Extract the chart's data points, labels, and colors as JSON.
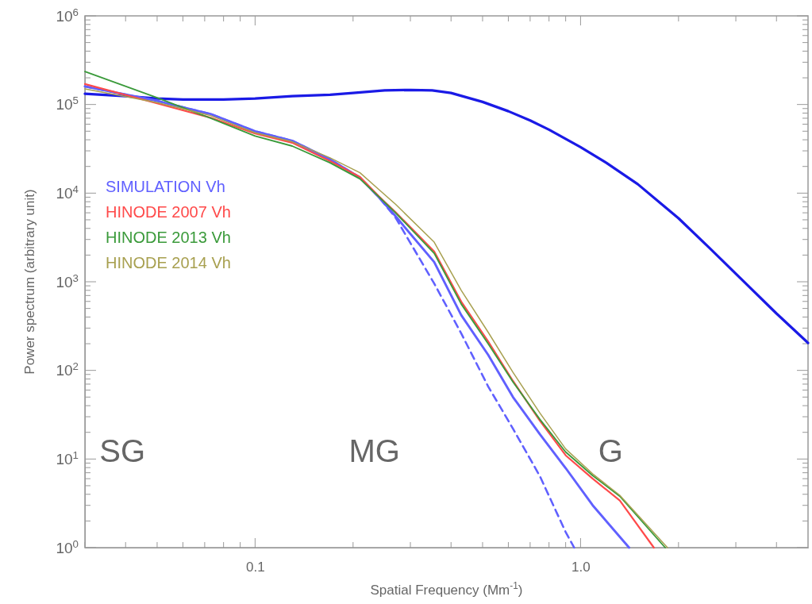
{
  "chart_data": {
    "type": "line",
    "xlabel": "Spatial Frequency (Mm$^{-1}$)",
    "ylabel": "Power spectrum (arbitrary unit)",
    "log": "xy",
    "grid": false,
    "legend": "top left",
    "marker": "none",
    "xlim": [
      0.03,
      5
    ],
    "ylim": [
      1,
      1000000
    ],
    "xticks": [
      {
        "value": 0.03,
        "label": null
      },
      {
        "value": 0.04,
        "label": null
      },
      {
        "value": 0.05,
        "label": null
      },
      {
        "value": 0.06,
        "label": null
      },
      {
        "value": 0.07,
        "label": null
      },
      {
        "value": 0.08,
        "label": null
      },
      {
        "value": 0.09,
        "label": null
      },
      0.1,
      {
        "value": 0.2,
        "label": null
      },
      {
        "value": 0.3,
        "label": null
      },
      {
        "value": 0.4,
        "label": null
      },
      {
        "value": 0.5,
        "label": null
      },
      {
        "value": 0.6,
        "label": null
      },
      {
        "value": 0.7,
        "label": null
      },
      {
        "value": 0.8,
        "label": null
      },
      {
        "value": 0.9,
        "label": null
      },
      {
        "value": 1,
        "label": "1.0"
      },
      {
        "value": 2,
        "label": null
      },
      {
        "value": 3,
        "label": null
      },
      {
        "value": 4,
        "label": null
      }
    ],
    "yticks": [
      {
        "value": 1,
        "label": "10$^{0}$"
      },
      {
        "value": 10,
        "label": "10$^{1}$"
      },
      {
        "value": 100,
        "label": "10$^{2}$"
      },
      {
        "value": 1000,
        "label": "10$^{3}$"
      },
      {
        "value": 10000,
        "label": "10$^{4}$"
      },
      {
        "value": 100000,
        "label": "10$^{5}$"
      },
      {
        "value": 1000000,
        "label": "10$^{6}$"
      }
    ],
    "annotations": [
      "SG",
      "MG",
      "G"
    ],
    "series": [
      {
        "color": "#1a1ae6",
        "line_style": "solid",
        "x": [
          0.03,
          0.04,
          0.05,
          0.06,
          0.08,
          0.1,
          0.13,
          0.17,
          0.2,
          0.25,
          0.3,
          0.35,
          0.4,
          0.5,
          0.6,
          0.7,
          0.8,
          1.0,
          1.2,
          1.5,
          2,
          2.5,
          3,
          4,
          5
        ],
        "values": [
          132000,
          124000,
          117000,
          114000,
          114000,
          117000,
          124000,
          129000,
          135000,
          144000,
          146000,
          144000,
          135000,
          107000,
          84000,
          66000,
          52000,
          33000,
          22000,
          12600,
          5200,
          2370,
          1230,
          438,
          204
        ]
      },
      {
        "name": "SIMULATION Vh",
        "color": "#6060ff",
        "line_style": "solid",
        "x": [
          0.03,
          0.05,
          0.073,
          0.1,
          0.13,
          0.17,
          0.21,
          0.24,
          0.27,
          0.355,
          0.43,
          0.52,
          0.62,
          0.75,
          0.9,
          1.09,
          1.41
        ],
        "values": [
          160000,
          110000,
          78000,
          50000,
          39000,
          24000,
          15000,
          9000,
          5500,
          1670,
          420,
          150,
          50,
          19,
          7.9,
          3.0,
          1
        ]
      },
      {
        "color": "#6060ff",
        "line_style": "dashed",
        "x": [
          0.03,
          0.05,
          0.073,
          0.1,
          0.13,
          0.17,
          0.21,
          0.24,
          0.27,
          0.355,
          0.43,
          0.52,
          0.62,
          0.75,
          0.9,
          0.956
        ],
        "values": [
          160000,
          110000,
          78000,
          50000,
          39000,
          24000,
          15000,
          9000,
          5300,
          957,
          261,
          66,
          22,
          6.4,
          1.5,
          1
        ]
      },
      {
        "name": "HINODE 2007 Vh",
        "color": "#ff4a4a",
        "line_style": "solid",
        "x": [
          0.03,
          0.05,
          0.073,
          0.1,
          0.13,
          0.17,
          0.21,
          0.24,
          0.27,
          0.355,
          0.43,
          0.52,
          0.62,
          0.75,
          0.9,
          1.09,
          1.32,
          1.68
        ],
        "values": [
          170000,
          103000,
          71000,
          47000,
          37000,
          23000,
          15200,
          9200,
          6100,
          2200,
          596,
          213,
          76,
          27,
          11,
          6.0,
          3.4,
          1
        ]
      },
      {
        "name": "HINODE 2013 Vh",
        "color": "#3a9a3a",
        "line_style": "solid",
        "x": [
          0.03,
          0.05,
          0.073,
          0.1,
          0.13,
          0.17,
          0.21,
          0.24,
          0.27,
          0.355,
          0.43,
          0.52,
          0.62,
          0.75,
          0.9,
          1.09,
          1.32,
          1.82
        ],
        "values": [
          235000,
          119000,
          70000,
          44000,
          34000,
          22000,
          14500,
          9100,
          6000,
          2100,
          560,
          200,
          74,
          28,
          12,
          6.5,
          3.8,
          1
        ]
      },
      {
        "name": "HINODE 2014 Vh",
        "color": "#a8a050",
        "line_style": "solid",
        "x": [
          0.03,
          0.05,
          0.073,
          0.1,
          0.13,
          0.17,
          0.21,
          0.24,
          0.27,
          0.355,
          0.43,
          0.52,
          0.62,
          0.75,
          0.9,
          1.09,
          1.32,
          1.85
        ],
        "values": [
          150000,
          105000,
          75000,
          48000,
          38000,
          25000,
          17000,
          11000,
          7500,
          2800,
          800,
          270,
          95,
          33,
          13,
          6.8,
          3.9,
          1
        ]
      }
    ]
  }
}
